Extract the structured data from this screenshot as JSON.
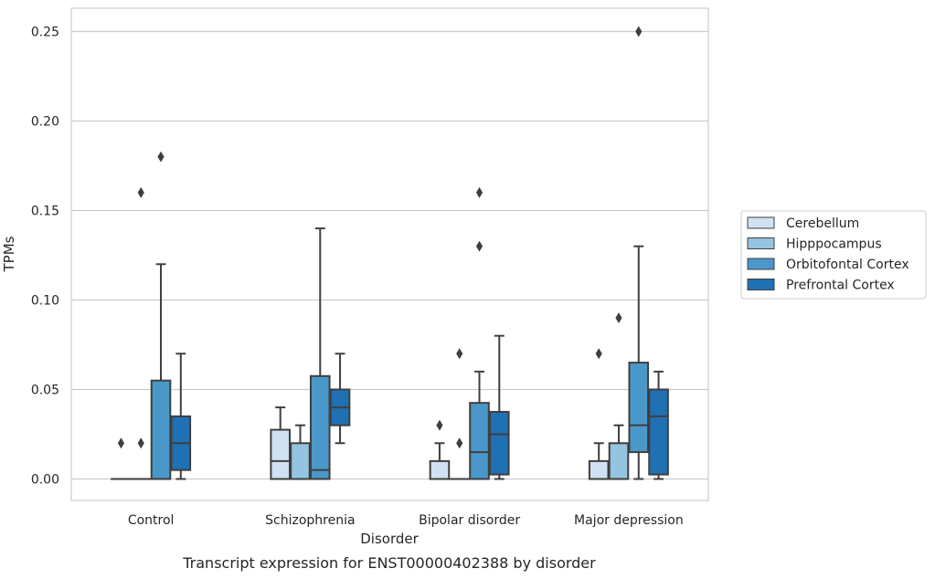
{
  "caption": "Transcript expression for ENST00000402388 by disorder",
  "chart_data": {
    "type": "box",
    "xlabel": "Disorder",
    "ylabel": "TPMs",
    "ylim": [
      -0.012,
      0.263
    ],
    "yticks": [
      0.0,
      0.05,
      0.1,
      0.15,
      0.2,
      0.25
    ],
    "ytick_labels": [
      "0.00",
      "0.05",
      "0.10",
      "0.15",
      "0.20",
      "0.25"
    ],
    "grid": "horizontal",
    "legend_position": "right",
    "categories": [
      "Control",
      "Schizophrenia",
      "Bipolar disorder",
      "Major depression"
    ],
    "series": [
      {
        "name": "Cerebellum",
        "color": "#d0e1f2",
        "boxes": [
          {
            "min": 0.0,
            "q1": 0.0,
            "median": 0.0,
            "q3": 0.0,
            "max": 0.0,
            "outliers": [
              0.02
            ]
          },
          {
            "min": 0.0,
            "q1": 0.0,
            "median": 0.01,
            "q3": 0.0275,
            "max": 0.04,
            "outliers": []
          },
          {
            "min": 0.0,
            "q1": 0.0,
            "median": 0.0,
            "q3": 0.01,
            "max": 0.02,
            "outliers": [
              0.03
            ]
          },
          {
            "min": 0.0,
            "q1": 0.0,
            "median": 0.0,
            "q3": 0.01,
            "max": 0.02,
            "outliers": [
              0.07
            ]
          }
        ]
      },
      {
        "name": "Hipppocampus",
        "color": "#94c4df",
        "boxes": [
          {
            "min": 0.0,
            "q1": 0.0,
            "median": 0.0,
            "q3": 0.0,
            "max": 0.0,
            "outliers": [
              0.02,
              0.16
            ]
          },
          {
            "min": 0.0,
            "q1": 0.0,
            "median": 0.0,
            "q3": 0.02,
            "max": 0.03,
            "outliers": []
          },
          {
            "min": 0.0,
            "q1": 0.0,
            "median": 0.0,
            "q3": 0.0,
            "max": 0.0,
            "outliers": [
              0.02,
              0.07
            ]
          },
          {
            "min": 0.0,
            "q1": 0.0,
            "median": 0.0,
            "q3": 0.02,
            "max": 0.03,
            "outliers": [
              0.09
            ]
          }
        ]
      },
      {
        "name": "Orbitofontal Cortex",
        "color": "#4a98c9",
        "boxes": [
          {
            "min": 0.0,
            "q1": 0.0,
            "median": 0.0,
            "q3": 0.055,
            "max": 0.12,
            "outliers": [
              0.18
            ]
          },
          {
            "min": 0.0,
            "q1": 0.0,
            "median": 0.005,
            "q3": 0.0575,
            "max": 0.14,
            "outliers": []
          },
          {
            "min": 0.0,
            "q1": 0.0,
            "median": 0.015,
            "q3": 0.0425,
            "max": 0.06,
            "outliers": [
              0.13,
              0.16
            ]
          },
          {
            "min": 0.0,
            "q1": 0.015,
            "median": 0.03,
            "q3": 0.065,
            "max": 0.13,
            "outliers": [
              0.25
            ]
          }
        ]
      },
      {
        "name": "Prefrontal Cortex",
        "color": "#2070b4",
        "boxes": [
          {
            "min": 0.0,
            "q1": 0.005,
            "median": 0.02,
            "q3": 0.035,
            "max": 0.07,
            "outliers": []
          },
          {
            "min": 0.02,
            "q1": 0.03,
            "median": 0.04,
            "q3": 0.05,
            "max": 0.07,
            "outliers": []
          },
          {
            "min": 0.0,
            "q1": 0.0025,
            "median": 0.025,
            "q3": 0.0375,
            "max": 0.08,
            "outliers": []
          },
          {
            "min": 0.0,
            "q1": 0.0025,
            "median": 0.035,
            "q3": 0.05,
            "max": 0.06,
            "outliers": []
          }
        ]
      }
    ]
  }
}
